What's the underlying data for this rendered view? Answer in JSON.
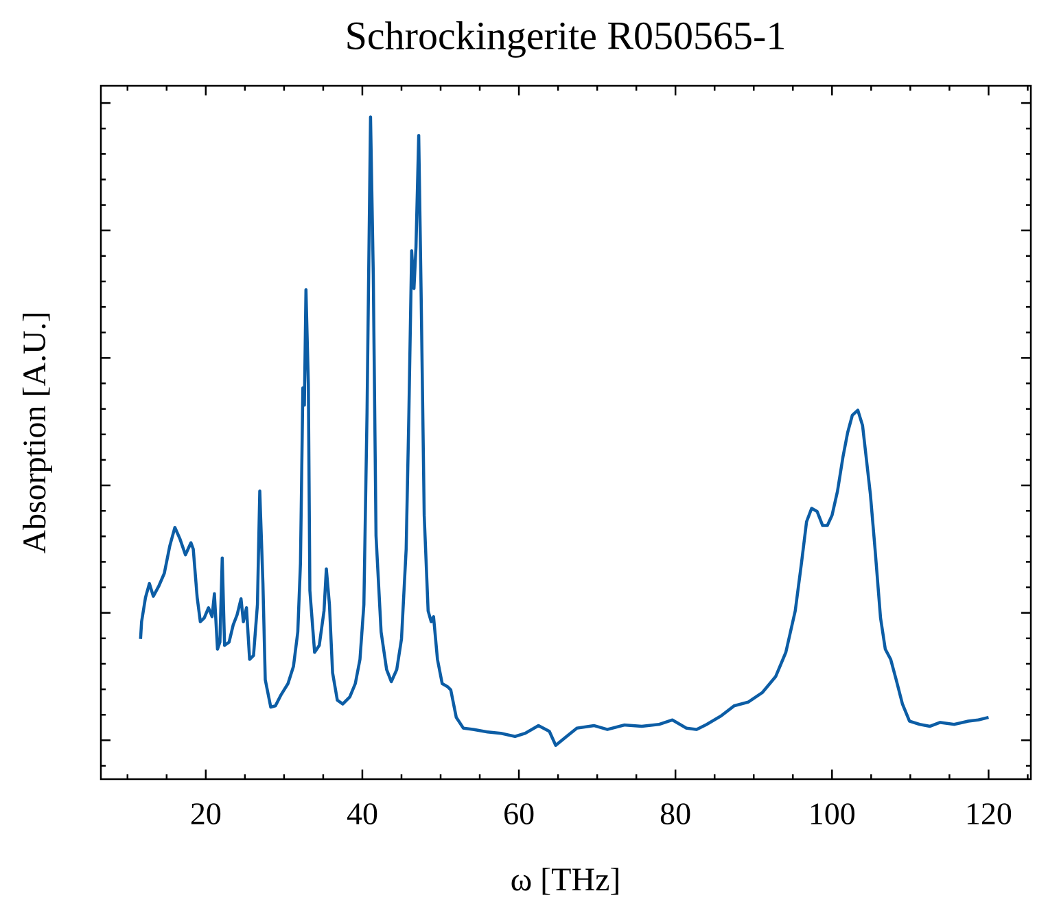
{
  "chart_data": {
    "type": "line",
    "title": "Schrockingerite R050565-1",
    "xlabel": "ω [THz]",
    "ylabel": "Absorption [A.U.]",
    "xlim": [
      6.6,
      125.4
    ],
    "ylim": [
      -0.061,
      1.027
    ],
    "xticks": [
      20,
      40,
      60,
      80,
      100,
      120
    ],
    "xminorticks": [
      10,
      15,
      25,
      30,
      35,
      45,
      50,
      55,
      65,
      70,
      75,
      85,
      90,
      95,
      105,
      110,
      115,
      125
    ],
    "yticks": [
      0,
      0.2,
      0.4,
      0.6,
      0.8,
      1.0
    ],
    "yminorticks": [
      -0.04,
      0.04,
      0.08,
      0.12,
      0.16,
      0.24,
      0.28,
      0.32,
      0.36,
      0.44,
      0.48,
      0.52,
      0.56,
      0.64,
      0.68,
      0.72,
      0.76,
      0.84,
      0.88,
      0.92,
      0.96
    ],
    "series": [
      {
        "color": "#0c5da5",
        "x": [
          11.67,
          11.8,
          12.3,
          12.8,
          13.3,
          14.0,
          14.7,
          15.4,
          16.05,
          16.7,
          17.4,
          18.1,
          18.4,
          18.9,
          19.3,
          19.8,
          20.35,
          20.8,
          21.1,
          21.5,
          21.8,
          22.1,
          22.4,
          22.98,
          23.5,
          24.0,
          24.5,
          24.8,
          25.2,
          25.6,
          26.1,
          26.6,
          26.9,
          27.3,
          27.6,
          28.3,
          28.9,
          29.6,
          30.5,
          31.2,
          31.75,
          32.1,
          32.4,
          32.6,
          32.8,
          33.1,
          33.3,
          33.9,
          34.5,
          35.1,
          35.4,
          35.8,
          36.2,
          36.8,
          37.5,
          38.4,
          39.1,
          39.7,
          40.2,
          40.6,
          41.05,
          41.4,
          41.75,
          42.4,
          43.1,
          43.7,
          44.4,
          45.0,
          45.6,
          45.95,
          46.3,
          46.6,
          46.85,
          47.2,
          47.5,
          47.9,
          48.4,
          48.8,
          49.1,
          49.6,
          50.2,
          50.9,
          51.3,
          52.0,
          52.9,
          54.2,
          56.0,
          57.7,
          59.5,
          60.8,
          62.5,
          63.9,
          64.7,
          66.1,
          67.4,
          69.6,
          71.3,
          73.5,
          75.7,
          77.9,
          79.6,
          81.4,
          82.7,
          84.0,
          85.8,
          87.5,
          89.3,
          91.1,
          92.8,
          94.1,
          95.3,
          96.1,
          96.75,
          97.4,
          98.1,
          98.8,
          99.4,
          100.0,
          100.7,
          101.4,
          102.0,
          102.6,
          103.3,
          103.9,
          104.4,
          104.9,
          105.5,
          106.2,
          106.8,
          107.5,
          108.2,
          109.0,
          109.9,
          111.2,
          112.5,
          113.8,
          115.6,
          117.4,
          118.7,
          120.0
        ],
        "values": [
          0.159,
          0.186,
          0.224,
          0.246,
          0.226,
          0.242,
          0.262,
          0.305,
          0.334,
          0.316,
          0.291,
          0.31,
          0.3,
          0.224,
          0.186,
          0.192,
          0.208,
          0.194,
          0.23,
          0.143,
          0.154,
          0.286,
          0.149,
          0.154,
          0.181,
          0.197,
          0.222,
          0.186,
          0.208,
          0.127,
          0.133,
          0.213,
          0.391,
          0.246,
          0.095,
          0.052,
          0.054,
          0.071,
          0.089,
          0.116,
          0.17,
          0.278,
          0.553,
          0.526,
          0.707,
          0.558,
          0.235,
          0.138,
          0.149,
          0.203,
          0.269,
          0.213,
          0.106,
          0.063,
          0.057,
          0.068,
          0.089,
          0.127,
          0.213,
          0.515,
          0.978,
          0.731,
          0.321,
          0.17,
          0.111,
          0.092,
          0.111,
          0.159,
          0.3,
          0.515,
          0.768,
          0.709,
          0.774,
          0.949,
          0.709,
          0.353,
          0.203,
          0.186,
          0.194,
          0.127,
          0.089,
          0.084,
          0.079,
          0.036,
          0.019,
          0.017,
          0.013,
          0.011,
          0.006,
          0.011,
          0.023,
          0.014,
          -0.008,
          0.006,
          0.019,
          0.023,
          0.017,
          0.024,
          0.022,
          0.025,
          0.032,
          0.019,
          0.017,
          0.025,
          0.038,
          0.054,
          0.06,
          0.075,
          0.1,
          0.138,
          0.203,
          0.278,
          0.343,
          0.364,
          0.359,
          0.337,
          0.337,
          0.353,
          0.391,
          0.445,
          0.483,
          0.51,
          0.518,
          0.494,
          0.44,
          0.386,
          0.3,
          0.192,
          0.143,
          0.127,
          0.095,
          0.057,
          0.03,
          0.025,
          0.022,
          0.028,
          0.025,
          0.03,
          0.032,
          0.036
        ]
      }
    ]
  }
}
